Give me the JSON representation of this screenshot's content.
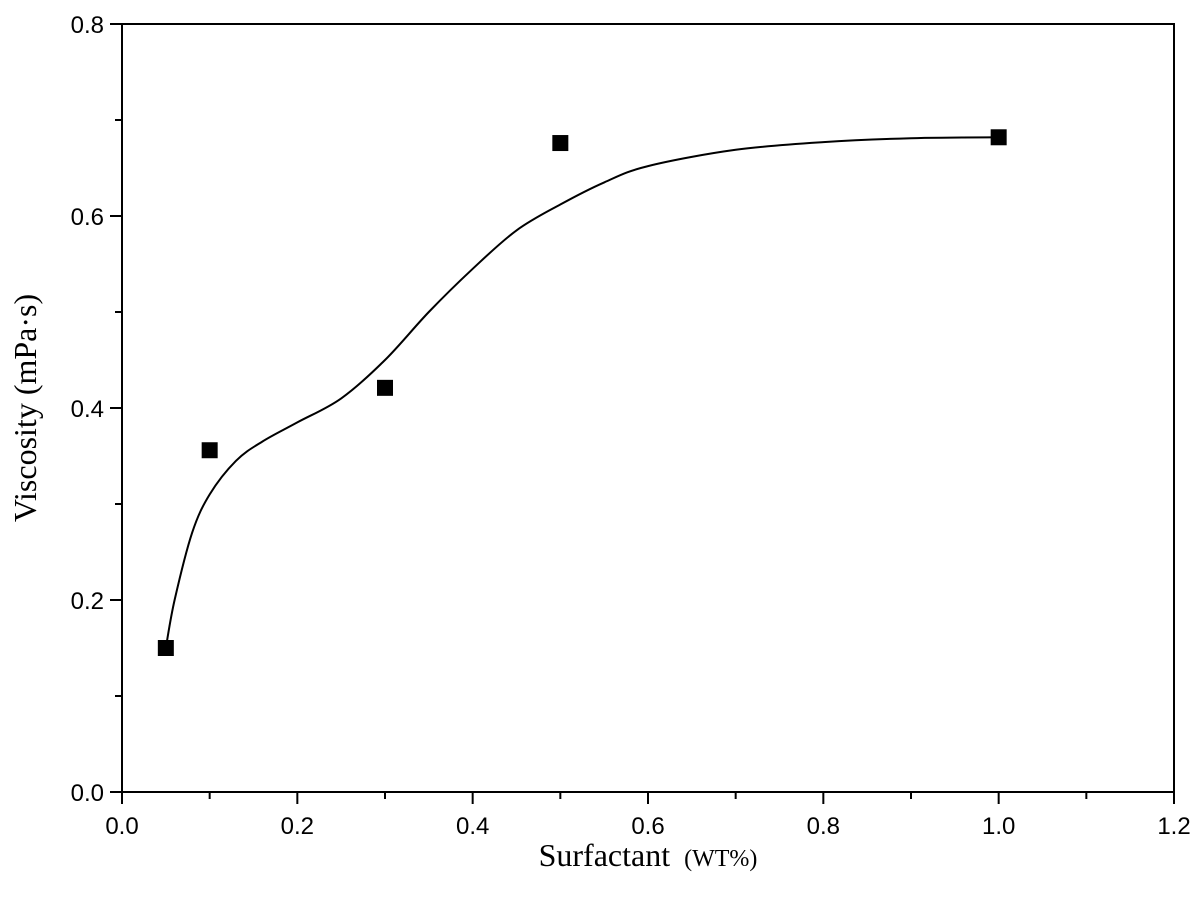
{
  "chart_data": {
    "type": "scatter",
    "title": "",
    "xlabel": "Surfactant (WT%)",
    "xlabel_main": "Surfactant",
    "xlabel_unit": "(WT%)",
    "ylabel": "Viscosity (mPa·s)",
    "xlim": [
      0.0,
      1.2
    ],
    "ylim": [
      0.0,
      0.8
    ],
    "x_ticks": [
      0.0,
      0.2,
      0.4,
      0.6,
      0.8,
      1.0,
      1.2
    ],
    "x_tick_labels": [
      "0.0",
      "0.2",
      "0.4",
      "0.6",
      "0.8",
      "1.0",
      "1.2"
    ],
    "y_ticks": [
      0.0,
      0.2,
      0.4,
      0.6,
      0.8
    ],
    "y_tick_labels": [
      "0.0",
      "0.2",
      "0.4",
      "0.6",
      "0.8"
    ],
    "grid": false,
    "series": [
      {
        "name": "Viscosity",
        "marker": "square",
        "color": "#000000",
        "x": [
          0.05,
          0.1,
          0.3,
          0.5,
          1.0
        ],
        "y": [
          0.15,
          0.356,
          0.421,
          0.676,
          0.682
        ]
      }
    ],
    "fit_curve": {
      "name": "smooth fit",
      "color": "#000000",
      "x": [
        0.05,
        0.06,
        0.08,
        0.1,
        0.13,
        0.16,
        0.2,
        0.25,
        0.3,
        0.35,
        0.4,
        0.45,
        0.5,
        0.55,
        0.6,
        0.7,
        0.8,
        0.9,
        1.0
      ],
      "y": [
        0.15,
        0.2,
        0.27,
        0.31,
        0.345,
        0.365,
        0.385,
        0.41,
        0.45,
        0.5,
        0.545,
        0.585,
        0.612,
        0.635,
        0.652,
        0.669,
        0.677,
        0.681,
        0.682
      ]
    }
  }
}
